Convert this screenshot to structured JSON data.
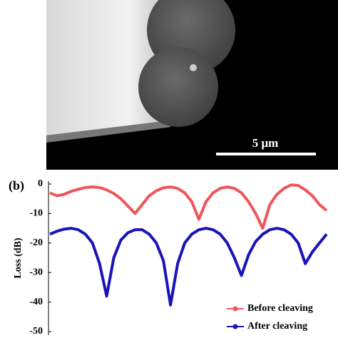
{
  "scale_bar": "5 μm",
  "chart_data": {
    "type": "line",
    "panel_label": "(b)",
    "y_label": "Loss (dB)",
    "ylim": [
      -50,
      0
    ],
    "yticks": [
      0,
      -10,
      -20,
      -30,
      -40,
      -50
    ],
    "series": [
      {
        "name": "Before cleaving",
        "color": "#f0555a",
        "values": [
          -3,
          -4,
          -3.5,
          -2.5,
          -1.8,
          -1.2,
          -1,
          -1.2,
          -2,
          -3.2,
          -5,
          -7.5,
          -10,
          -7,
          -4,
          -2.3,
          -1.3,
          -1,
          -1.5,
          -3,
          -6,
          -12,
          -6,
          -3,
          -1.5,
          -1,
          -1.5,
          -3,
          -6,
          -10,
          -15,
          -7,
          -3.5,
          -1.5,
          -0.3,
          -0.5,
          -2,
          -4,
          -7,
          -9
        ]
      },
      {
        "name": "After cleaving",
        "color": "#1a14b8",
        "values": [
          -17,
          -16,
          -15.3,
          -15,
          -15.5,
          -17,
          -20,
          -27,
          -38,
          -25,
          -19,
          -16.5,
          -15.5,
          -15.5,
          -17,
          -20,
          -26,
          -41,
          -27,
          -20,
          -17,
          -15.5,
          -15,
          -15.5,
          -17,
          -20,
          -25,
          -31,
          -24,
          -19.5,
          -17,
          -15.5,
          -15,
          -15.5,
          -17,
          -20,
          -27,
          -23,
          -20,
          -17
        ]
      }
    ]
  }
}
